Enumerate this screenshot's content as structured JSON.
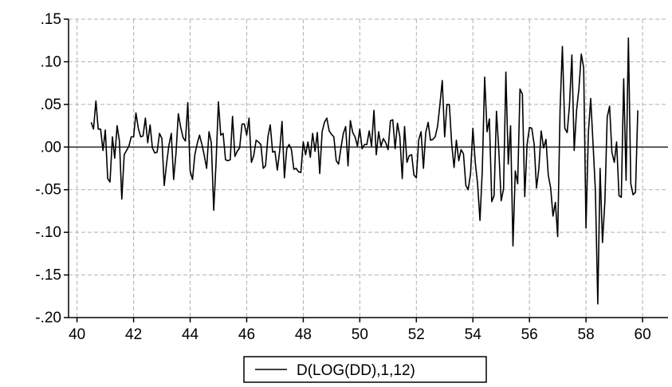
{
  "chart_data": {
    "type": "line",
    "title": "",
    "xlabel": "",
    "ylabel": "",
    "xlim": [
      39.7,
      60.9
    ],
    "ylim": [
      -0.2,
      0.15
    ],
    "x_ticks": [
      40,
      42,
      44,
      46,
      48,
      50,
      52,
      54,
      56,
      58,
      60
    ],
    "x_tick_labels": [
      "40",
      "42",
      "44",
      "46",
      "48",
      "50",
      "52",
      "54",
      "56",
      "58",
      "60"
    ],
    "y_ticks": [
      0.15,
      0.1,
      0.05,
      0.0,
      -0.05,
      -0.1,
      -0.15,
      -0.2
    ],
    "y_tick_labels": [
      ".15",
      ".10",
      ".05",
      ".00",
      "-.05",
      "-.10",
      "-.15",
      "-.20"
    ],
    "grid": true,
    "zero_line": true,
    "legend": {
      "placement": "bottom-center",
      "entries": [
        "D(LOG(DD),1,12)"
      ]
    },
    "series": [
      {
        "name": "D(LOG(DD),1,12)",
        "color": "#000000",
        "x_start": 40.5,
        "x_step": 0.08333,
        "values": [
          0.029,
          0.021,
          0.054,
          0.021,
          0.021,
          -0.004,
          0.02,
          -0.037,
          -0.041,
          0.012,
          -0.013,
          0.025,
          0.007,
          -0.061,
          -0.009,
          -0.004,
          0.001,
          0.012,
          0.012,
          0.04,
          0.022,
          0.012,
          0.013,
          0.034,
          0.005,
          0.026,
          -0.001,
          -0.007,
          -0.006,
          0.016,
          0.01,
          -0.045,
          -0.019,
          0.002,
          0.016,
          -0.038,
          -0.007,
          0.039,
          0.023,
          0.011,
          0.007,
          0.052,
          -0.028,
          -0.038,
          -0.009,
          0.004,
          0.014,
          0.003,
          -0.01,
          -0.025,
          0.018,
          0.005,
          -0.074,
          -0.019,
          0.053,
          0.014,
          0.016,
          -0.015,
          -0.016,
          -0.015,
          0.036,
          -0.011,
          -0.005,
          -0.001,
          0.027,
          0.027,
          0.014,
          0.034,
          -0.018,
          -0.01,
          0.008,
          0.006,
          0.003,
          -0.025,
          -0.022,
          0.012,
          0.026,
          -0.006,
          -0.005,
          -0.027,
          -0.005,
          0.03,
          -0.036,
          -0.002,
          0.003,
          -0.003,
          -0.026,
          -0.025,
          -0.029,
          -0.03,
          0.006,
          -0.009,
          0.006,
          -0.012,
          0.016,
          -0.005,
          0.017,
          -0.031,
          0.018,
          0.029,
          0.034,
          0.019,
          0.015,
          0.012,
          -0.016,
          -0.02,
          -0.001,
          0.016,
          0.024,
          -0.022,
          0.031,
          0.017,
          0.012,
          0.001,
          0.021,
          -0.002,
          0.003,
          0.003,
          0.019,
          0.001,
          0.043,
          -0.009,
          0.018,
          0.001,
          0.01,
          0.005,
          -0.003,
          0.031,
          0.032,
          -0.002,
          0.028,
          0.012,
          -0.037,
          0.024,
          -0.018,
          -0.01,
          -0.009,
          -0.033,
          -0.036,
          0.008,
          0.018,
          -0.025,
          0.017,
          0.029,
          0.008,
          0.009,
          0.012,
          0.024,
          0.049,
          0.078,
          0.012,
          0.05,
          0.05,
          0.004,
          -0.024,
          0.008,
          -0.016,
          -0.003,
          -0.008,
          -0.045,
          -0.05,
          -0.031,
          0.022,
          -0.018,
          -0.043,
          -0.086,
          -0.028,
          0.082,
          0.018,
          0.033,
          -0.064,
          -0.057,
          0.042,
          -0.003,
          -0.063,
          -0.049,
          0.088,
          -0.02,
          0.025,
          -0.116,
          -0.028,
          -0.043,
          0.068,
          0.062,
          -0.058,
          0.003,
          0.023,
          0.022,
          0.003,
          -0.048,
          -0.025,
          0.019,
          -0.001,
          0.009,
          -0.033,
          -0.048,
          -0.081,
          -0.065,
          -0.105,
          0.044,
          0.118,
          0.022,
          0.017,
          0.049,
          0.108,
          -0.004,
          0.043,
          0.068,
          0.109,
          0.093,
          -0.095,
          0.017,
          0.057,
          0.003,
          -0.051,
          -0.184,
          -0.025,
          -0.112,
          -0.064,
          0.035,
          0.048,
          -0.006,
          -0.018,
          0.006,
          -0.057,
          -0.059,
          0.08,
          -0.039,
          0.128,
          -0.043,
          -0.056,
          -0.053,
          0.043
        ]
      }
    ]
  }
}
